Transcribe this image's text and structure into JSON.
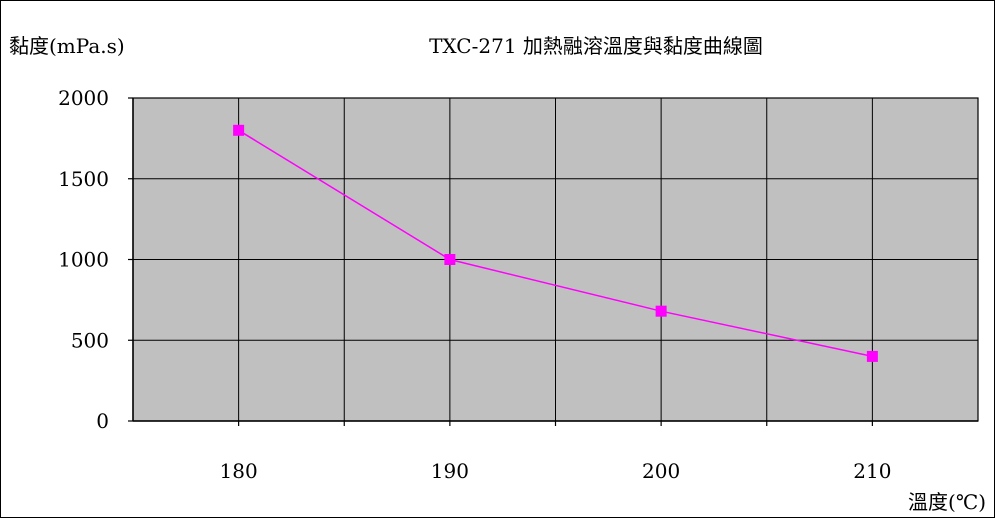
{
  "chart_data": {
    "type": "line",
    "title": "TXC-271 加熱融溶溫度與黏度曲線圖",
    "ylabel": "黏度(mPa.s)",
    "xlabel": "溫度(℃)",
    "x_ticks": [
      180,
      190,
      200,
      210
    ],
    "y_ticks": [
      0,
      500,
      1000,
      1500,
      2000
    ],
    "xlim": [
      175,
      215
    ],
    "ylim": [
      0,
      2000
    ],
    "grid": true,
    "series": [
      {
        "x": [
          180,
          190,
          200,
          210
        ],
        "values": [
          1800,
          1000,
          680,
          400
        ]
      }
    ]
  },
  "colors": {
    "plot_background": "#c0c0c0",
    "series_line": "#ff00ff",
    "marker": "#ff00ff",
    "grid": "#000000"
  }
}
